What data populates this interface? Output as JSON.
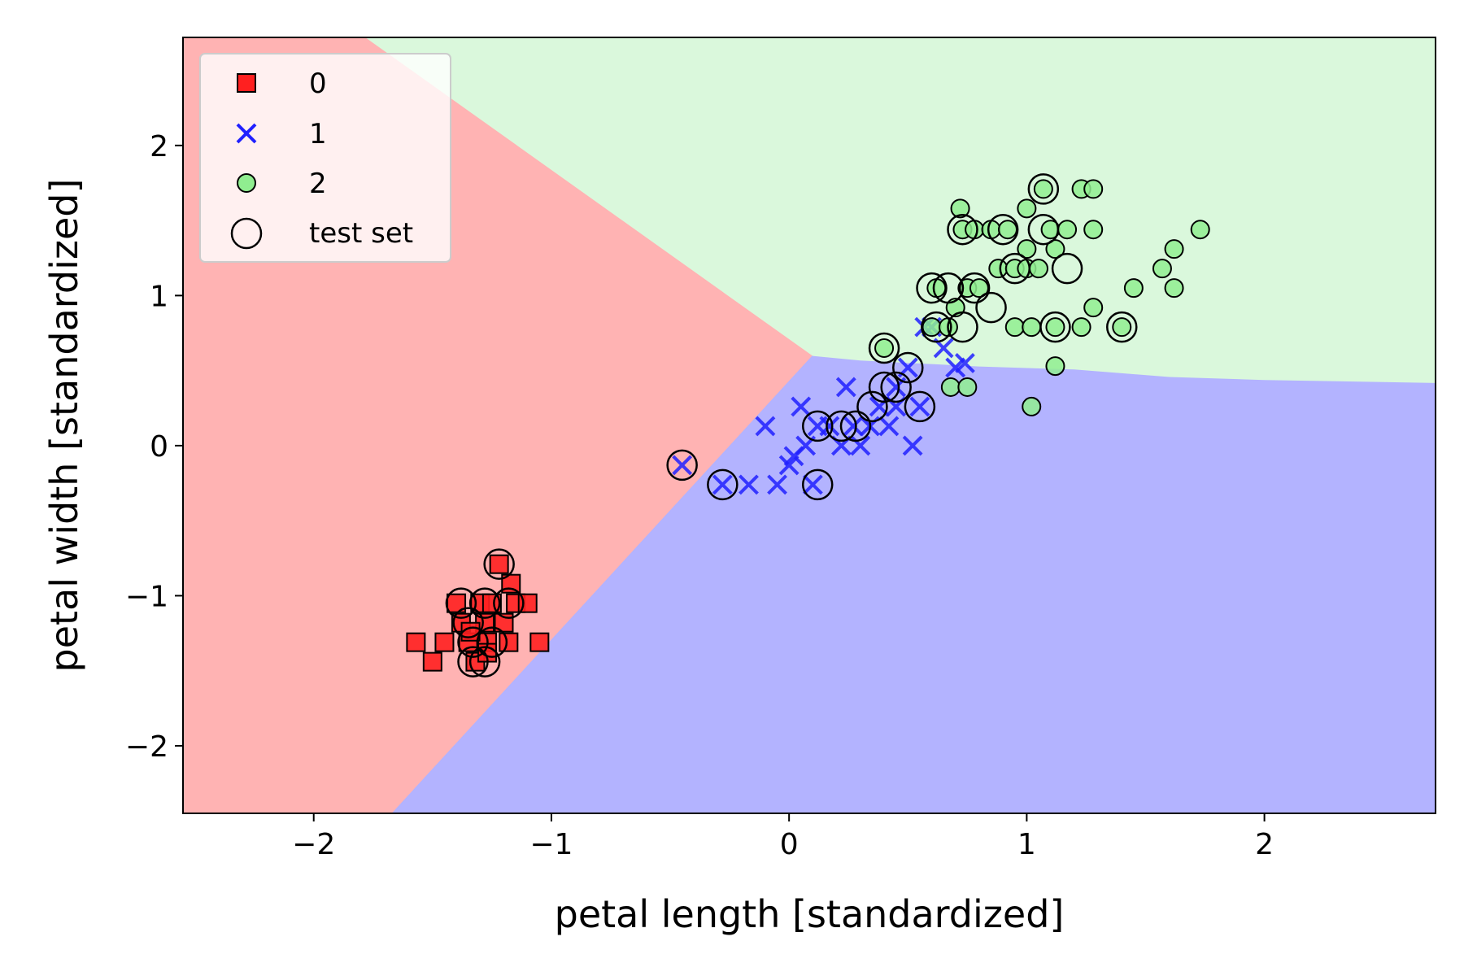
{
  "chart_data": {
    "type": "scatter",
    "title": "",
    "xlabel": "petal length [standardized]",
    "ylabel": "petal width [standardized]",
    "xlim": [
      -2.55,
      2.72
    ],
    "ylim": [
      -2.45,
      2.72
    ],
    "xticks": [
      {
        "value": -2,
        "label": "−2"
      },
      {
        "value": -1,
        "label": "−1"
      },
      {
        "value": 0,
        "label": "0"
      },
      {
        "value": 1,
        "label": "1"
      },
      {
        "value": 2,
        "label": "2"
      }
    ],
    "yticks": [
      {
        "value": -2,
        "label": "−2"
      },
      {
        "value": -1,
        "label": "−1"
      },
      {
        "value": 0,
        "label": "0"
      },
      {
        "value": 1,
        "label": "1"
      },
      {
        "value": 2,
        "label": "2"
      }
    ],
    "grid": false,
    "legend_position": "top-left",
    "regions": [
      {
        "class": "0",
        "color": "#ffb3b3",
        "polygon": [
          [
            -2.55,
            2.72
          ],
          [
            -1.78,
            2.72
          ],
          [
            0.1,
            0.6
          ],
          [
            -1.67,
            -2.45
          ],
          [
            -2.55,
            -2.45
          ]
        ]
      },
      {
        "class": "1",
        "color": "#b3b3ff",
        "polygon": [
          [
            0.1,
            0.6
          ],
          [
            0.3,
            0.57
          ],
          [
            0.8,
            0.53
          ],
          [
            1.2,
            0.51
          ],
          [
            1.6,
            0.46
          ],
          [
            2.0,
            0.44
          ],
          [
            2.72,
            0.42
          ],
          [
            2.72,
            -2.45
          ],
          [
            -1.67,
            -2.45
          ]
        ]
      },
      {
        "class": "2",
        "color": "#daf8dc",
        "polygon": [
          [
            -1.78,
            2.72
          ],
          [
            2.72,
            2.72
          ],
          [
            2.72,
            0.42
          ],
          [
            2.0,
            0.44
          ],
          [
            1.6,
            0.46
          ],
          [
            1.2,
            0.51
          ],
          [
            0.8,
            0.53
          ],
          [
            0.3,
            0.57
          ],
          [
            0.1,
            0.6
          ]
        ]
      }
    ],
    "series": [
      {
        "name": "0",
        "marker": "square",
        "color": "#ff2020",
        "edge": "#000000",
        "points": [
          [
            -1.57,
            -1.31
          ],
          [
            -1.5,
            -1.44
          ],
          [
            -1.45,
            -1.31
          ],
          [
            -1.4,
            -1.05
          ],
          [
            -1.38,
            -1.18
          ],
          [
            -1.35,
            -1.31
          ],
          [
            -1.32,
            -1.44
          ],
          [
            -1.3,
            -1.05
          ],
          [
            -1.28,
            -1.18
          ],
          [
            -1.27,
            -1.31
          ],
          [
            -1.25,
            -1.05
          ],
          [
            -1.22,
            -0.79
          ],
          [
            -1.2,
            -1.18
          ],
          [
            -1.18,
            -1.31
          ],
          [
            -1.17,
            -0.92
          ],
          [
            -1.15,
            -1.05
          ],
          [
            -1.1,
            -1.05
          ],
          [
            -1.05,
            -1.31
          ],
          [
            -1.34,
            -1.24
          ],
          [
            -1.27,
            -1.38
          ]
        ]
      },
      {
        "name": "1",
        "marker": "x",
        "color": "#2020ff",
        "points": [
          [
            -0.45,
            -0.13
          ],
          [
            -0.28,
            -0.26
          ],
          [
            -0.17,
            -0.26
          ],
          [
            -0.1,
            0.13
          ],
          [
            -0.05,
            -0.26
          ],
          [
            0.0,
            -0.13
          ],
          [
            0.02,
            -0.07
          ],
          [
            0.05,
            0.26
          ],
          [
            0.07,
            0.0
          ],
          [
            0.1,
            -0.26
          ],
          [
            0.12,
            0.13
          ],
          [
            0.17,
            0.13
          ],
          [
            0.22,
            0.0
          ],
          [
            0.24,
            0.39
          ],
          [
            0.27,
            0.13
          ],
          [
            0.3,
            0.0
          ],
          [
            0.34,
            0.13
          ],
          [
            0.38,
            0.26
          ],
          [
            0.42,
            0.13
          ],
          [
            0.45,
            0.39
          ],
          [
            0.5,
            0.52
          ],
          [
            0.52,
            0.0
          ],
          [
            0.55,
            0.26
          ],
          [
            0.6,
            0.79
          ],
          [
            0.65,
            0.65
          ],
          [
            0.7,
            0.52
          ],
          [
            0.74,
            0.55
          ],
          [
            0.57,
            0.79
          ],
          [
            0.45,
            0.26
          ]
        ]
      },
      {
        "name": "2",
        "marker": "circle",
        "color": "#90ee90",
        "edge": "#000000",
        "points": [
          [
            0.4,
            0.65
          ],
          [
            0.6,
            0.79
          ],
          [
            0.62,
            1.05
          ],
          [
            0.67,
            0.79
          ],
          [
            0.68,
            0.39
          ],
          [
            0.7,
            0.92
          ],
          [
            0.72,
            1.58
          ],
          [
            0.73,
            1.44
          ],
          [
            0.75,
            0.39
          ],
          [
            0.75,
            1.05
          ],
          [
            0.78,
            1.44
          ],
          [
            0.8,
            1.05
          ],
          [
            0.85,
            1.44
          ],
          [
            0.88,
            1.18
          ],
          [
            0.95,
            0.79
          ],
          [
            0.95,
            1.18
          ],
          [
            1.0,
            1.18
          ],
          [
            1.0,
            1.31
          ],
          [
            1.0,
            1.58
          ],
          [
            1.02,
            0.79
          ],
          [
            1.02,
            0.26
          ],
          [
            1.05,
            1.18
          ],
          [
            1.1,
            1.44
          ],
          [
            1.12,
            0.53
          ],
          [
            1.12,
            1.31
          ],
          [
            1.17,
            1.44
          ],
          [
            1.23,
            0.79
          ],
          [
            1.23,
            1.71
          ],
          [
            1.28,
            0.92
          ],
          [
            1.28,
            1.44
          ],
          [
            1.28,
            1.71
          ],
          [
            1.4,
            0.79
          ],
          [
            1.45,
            1.05
          ],
          [
            1.57,
            1.18
          ],
          [
            1.62,
            1.31
          ],
          [
            1.62,
            1.05
          ],
          [
            1.73,
            1.44
          ],
          [
            1.07,
            1.71
          ],
          [
            0.92,
            1.44
          ],
          [
            1.12,
            0.79
          ]
        ]
      }
    ],
    "test_set": {
      "name": "test set",
      "points": [
        [
          -1.38,
          -1.05
        ],
        [
          -1.35,
          -1.18
        ],
        [
          -1.33,
          -1.31
        ],
        [
          -1.33,
          -1.44
        ],
        [
          -1.28,
          -1.05
        ],
        [
          -1.28,
          -1.44
        ],
        [
          -1.25,
          -1.31
        ],
        [
          -1.22,
          -0.79
        ],
        [
          -1.18,
          -1.05
        ],
        [
          -0.45,
          -0.13
        ],
        [
          -0.28,
          -0.26
        ],
        [
          0.12,
          0.13
        ],
        [
          0.12,
          -0.26
        ],
        [
          0.22,
          0.13
        ],
        [
          0.28,
          0.13
        ],
        [
          0.35,
          0.26
        ],
        [
          0.4,
          0.39
        ],
        [
          0.45,
          0.39
        ],
        [
          0.5,
          0.52
        ],
        [
          0.55,
          0.26
        ],
        [
          0.4,
          0.65
        ],
        [
          0.6,
          1.05
        ],
        [
          0.62,
          0.79
        ],
        [
          0.67,
          1.05
        ],
        [
          0.73,
          1.44
        ],
        [
          0.73,
          0.79
        ],
        [
          0.78,
          1.05
        ],
        [
          0.85,
          0.92
        ],
        [
          0.9,
          1.44
        ],
        [
          0.95,
          1.18
        ],
        [
          1.07,
          1.71
        ],
        [
          1.07,
          1.44
        ],
        [
          1.12,
          0.79
        ],
        [
          1.17,
          1.18
        ],
        [
          1.4,
          0.79
        ]
      ]
    }
  },
  "legend": {
    "items": [
      {
        "label": "0",
        "marker": "square",
        "color": "#ff2020"
      },
      {
        "label": "1",
        "marker": "x",
        "color": "#2020ff"
      },
      {
        "label": "2",
        "marker": "circle",
        "color": "#90ee90"
      },
      {
        "label": "test set",
        "marker": "open-circle",
        "color": "#000000"
      }
    ]
  }
}
